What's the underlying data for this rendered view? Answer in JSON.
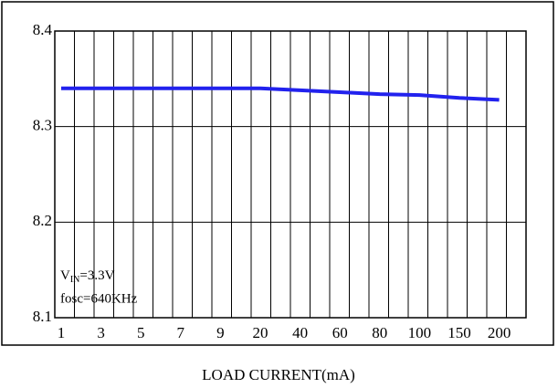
{
  "chart_data": {
    "type": "line",
    "xlabel": "LOAD CURRENT(mA)",
    "categories": [
      "1",
      "3",
      "5",
      "7",
      "9",
      "20",
      "40",
      "60",
      "80",
      "100",
      "150",
      "200"
    ],
    "series": [
      {
        "color": "#2222ee",
        "values": [
          8.34,
          8.34,
          8.34,
          8.34,
          8.34,
          8.34,
          8.338,
          8.336,
          8.334,
          8.333,
          8.33,
          8.328
        ]
      }
    ],
    "ylim": [
      8.1,
      8.4
    ],
    "yticks": [
      8.1,
      8.2,
      8.3,
      8.4
    ],
    "grid": true,
    "annotation_vin": {
      "main": "V",
      "sub": "IN",
      "rest": "=3.3V"
    },
    "annotation_fosc": "fosc=640KHz"
  }
}
